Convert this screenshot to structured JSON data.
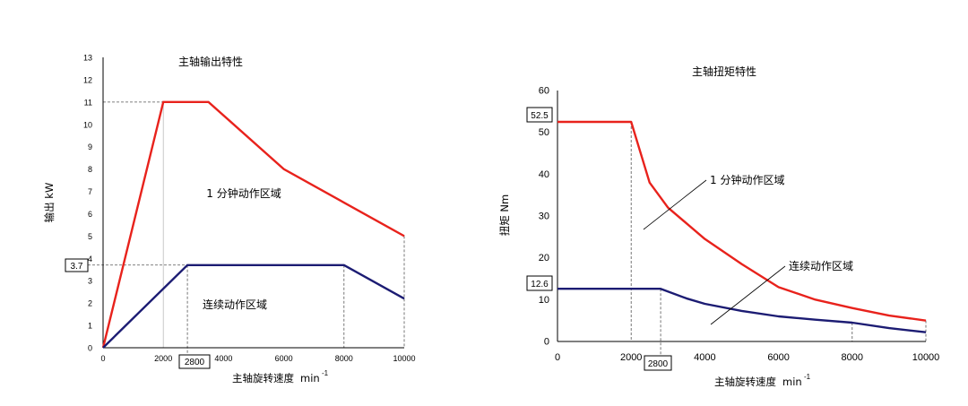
{
  "chart_data": [
    {
      "type": "line",
      "title": "主轴输出特性",
      "xlabel": "主轴旋转速度",
      "xunit": "min",
      "xunit_sup": "-1",
      "ylabel": "输出 kW",
      "xlim": [
        0,
        10000
      ],
      "ylim": [
        0,
        13
      ],
      "xticks": [
        "0",
        "2000",
        "2800",
        "4000",
        "6000",
        "8000",
        "10000"
      ],
      "yticks": [
        "0",
        "1",
        "2",
        "3",
        "4",
        "5",
        "6",
        "7",
        "8",
        "9",
        "10",
        "11",
        "12",
        "13"
      ],
      "series": [
        {
          "name": "1 分钟动作区域",
          "color": "#e8221c",
          "x": [
            0,
            2000,
            3500,
            6000,
            10000
          ],
          "y": [
            0,
            11,
            11,
            8,
            5
          ]
        },
        {
          "name": "连续动作区域",
          "color": "#1c1c73",
          "x": [
            0,
            2800,
            8000,
            10000
          ],
          "y": [
            0,
            3.7,
            3.7,
            2.2
          ]
        }
      ],
      "callouts": {
        "y_box": "3.7",
        "x_box": "2800"
      },
      "region_labels": [
        "1 分钟动作区域",
        "连续动作区域"
      ]
    },
    {
      "type": "line",
      "title": "主轴扭矩特性",
      "xlabel": "主轴旋转速度",
      "xunit": "min",
      "xunit_sup": "-1",
      "ylabel": "扭矩 Nm",
      "xlim": [
        0,
        10000
      ],
      "ylim": [
        0,
        60
      ],
      "xticks": [
        "0",
        "2000",
        "4000",
        "6000",
        "8000",
        "10000"
      ],
      "yticks": [
        "0",
        "10",
        "20",
        "30",
        "40",
        "50",
        "60"
      ],
      "series": [
        {
          "name": "1 分钟动作区域",
          "color": "#e8221c",
          "x": [
            0,
            2000,
            2500,
            3000,
            4000,
            5000,
            6000,
            7000,
            8000,
            9000,
            10000
          ],
          "y": [
            52.5,
            52.5,
            38,
            32,
            24.5,
            18.5,
            13,
            10,
            8,
            6.2,
            5
          ]
        },
        {
          "name": "连续动作区域",
          "color": "#1c1c73",
          "x": [
            0,
            2000,
            2800,
            3500,
            4000,
            5000,
            6000,
            7000,
            8000,
            9000,
            10000
          ],
          "y": [
            12.6,
            12.6,
            12.6,
            10.3,
            9,
            7.3,
            6,
            5.2,
            4.5,
            3.2,
            2.2
          ]
        }
      ],
      "callouts": {
        "y_box": "52.5",
        "y_box2": "12.6",
        "x_box": "2800"
      },
      "region_labels": [
        "1 分钟动作区域",
        "连续动作区域"
      ]
    }
  ]
}
